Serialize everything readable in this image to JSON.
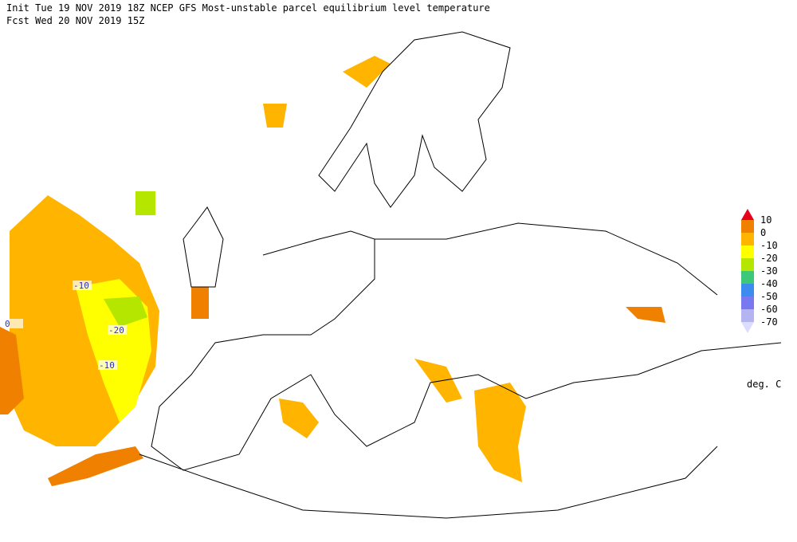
{
  "header": {
    "line1": "Init  Tue 19 NOV 2019 18Z  NCEP GFS Most-unstable parcel equilibrium level temperature",
    "line2": "Fcst Wed 20 NOV 2019 15Z"
  },
  "legend": {
    "labels": [
      "10",
      "0",
      "-10",
      "-20",
      "-30",
      "-40",
      "-50",
      "-60",
      "-70"
    ],
    "colors": [
      "#e8001c",
      "#f08000",
      "#ffb400",
      "#ffff00",
      "#b4e600",
      "#3cc878",
      "#3c8cf0",
      "#7878f0",
      "#b4b4f0",
      "#dcdcff"
    ],
    "unit": "deg. C"
  },
  "contour_labels": [
    "-10",
    "-20",
    "-10",
    "0"
  ]
}
